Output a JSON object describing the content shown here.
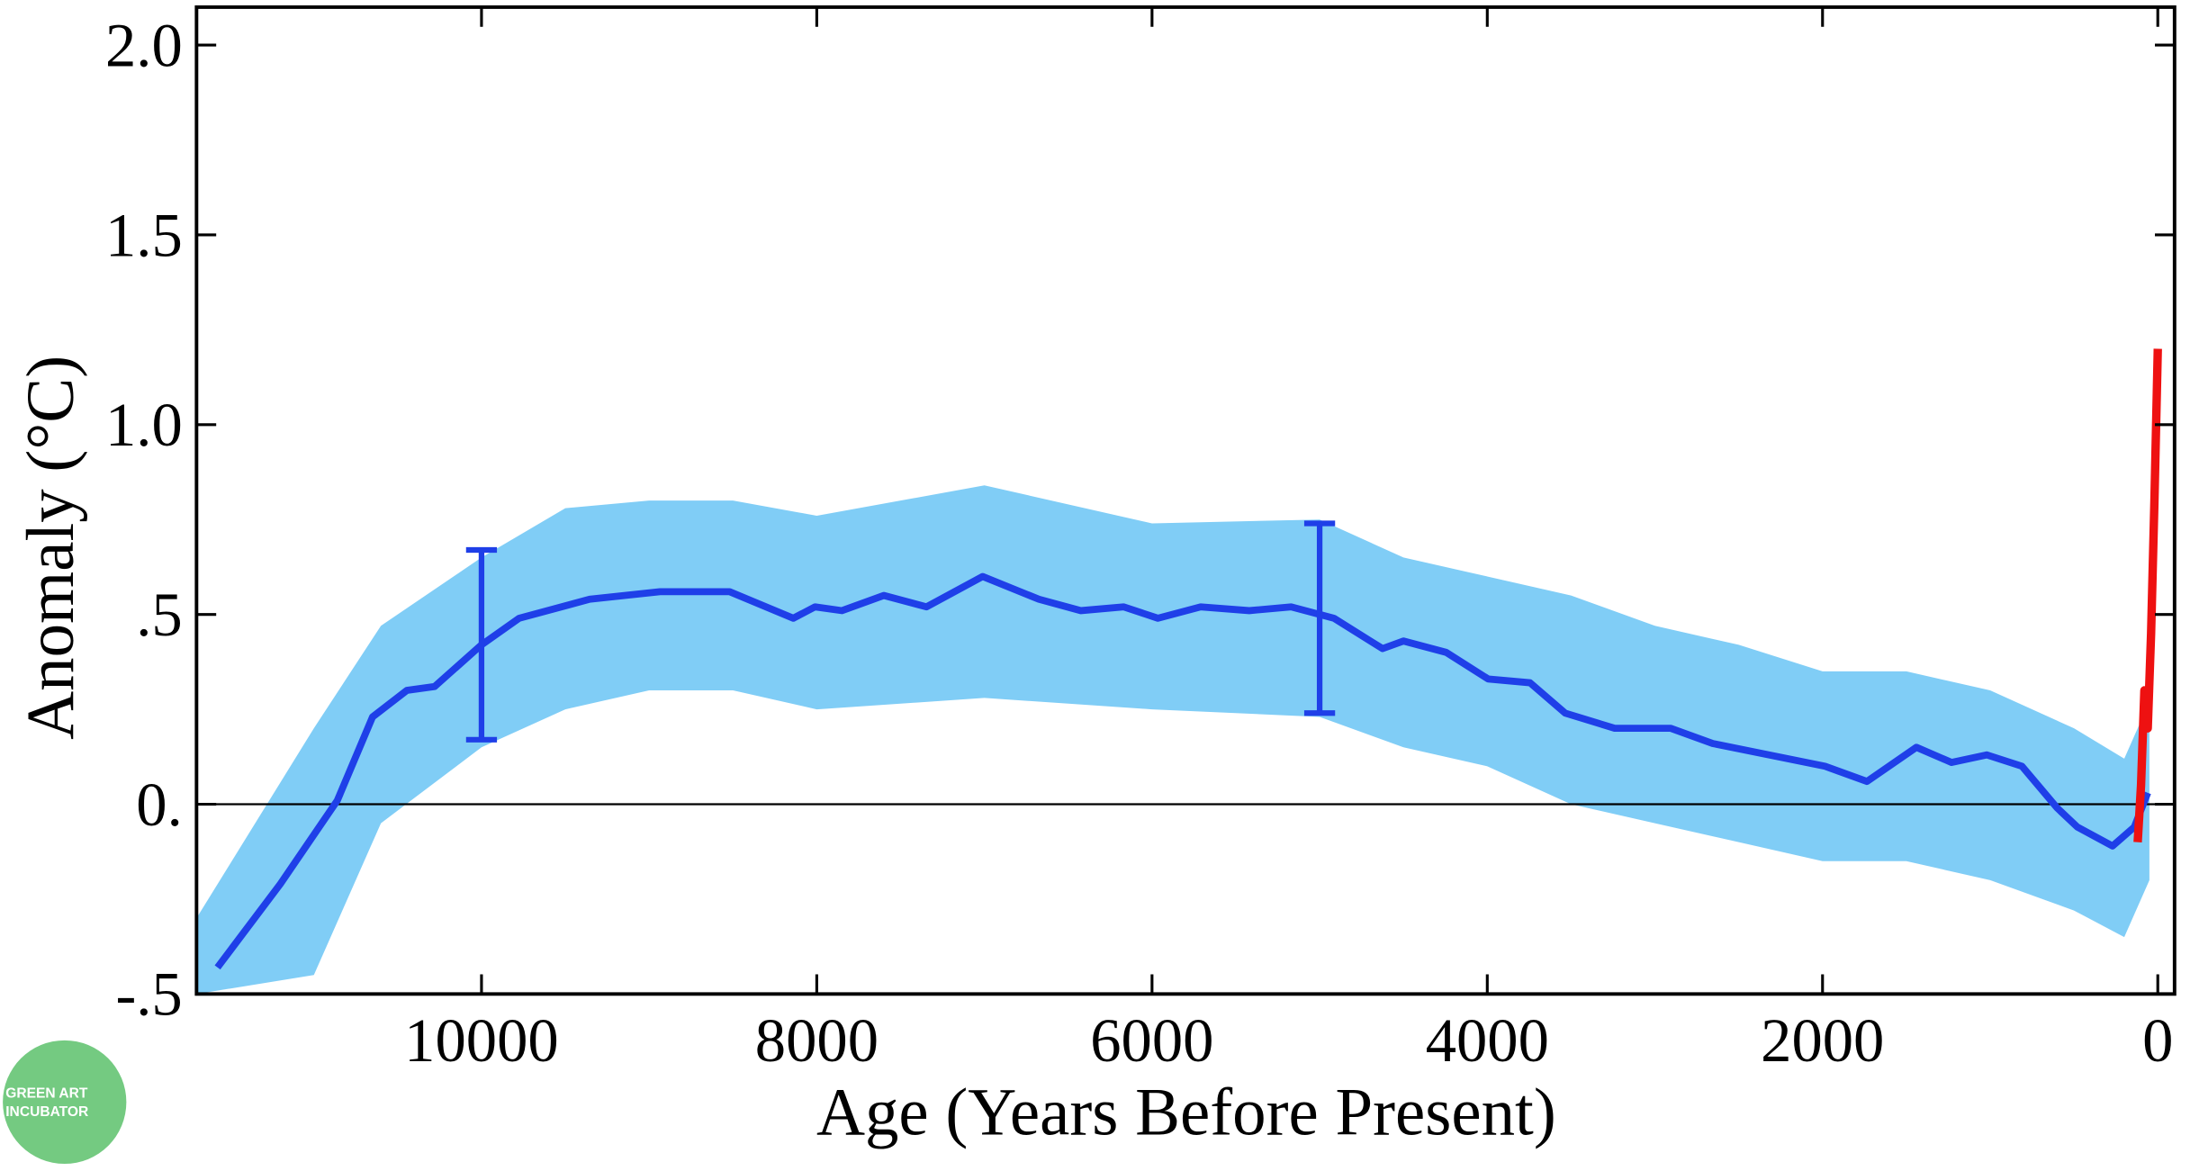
{
  "chart_data": {
    "type": "line",
    "xlabel": "Age (Years Before Present)",
    "ylabel": "Anomaly (°C)",
    "xlim": [
      11700,
      -100
    ],
    "ylim": [
      -0.5,
      2.1
    ],
    "xticks": [
      10000,
      8000,
      6000,
      4000,
      2000,
      0
    ],
    "yticks": [
      {
        "value": 2.0,
        "label": "2.0"
      },
      1.5,
      {
        "value": 1.0,
        "label": "1.0"
      },
      {
        "value": 0.5,
        "label": ".5"
      },
      {
        "value": 0,
        "label": "0."
      },
      {
        "value": -0.5,
        "label": "-.5"
      }
    ],
    "hline": 0,
    "band": {
      "color": "#80cdf6",
      "x": [
        11700,
        11000,
        10600,
        10000,
        9500,
        9000,
        8500,
        8000,
        7000,
        6000,
        5000,
        4500,
        4000,
        3500,
        3000,
        2500,
        2000,
        1500,
        1000,
        500,
        200,
        50
      ],
      "upper": [
        -0.3,
        0.2,
        0.47,
        0.65,
        0.78,
        0.8,
        0.8,
        0.76,
        0.84,
        0.74,
        0.75,
        0.65,
        0.6,
        0.55,
        0.47,
        0.42,
        0.35,
        0.35,
        0.3,
        0.2,
        0.12,
        0.27
      ],
      "lower": [
        -0.5,
        -0.45,
        -0.05,
        0.15,
        0.25,
        0.3,
        0.3,
        0.25,
        0.28,
        0.25,
        0.23,
        0.15,
        0.1,
        0.0,
        -0.05,
        -0.1,
        -0.15,
        -0.15,
        -0.2,
        -0.28,
        -0.35,
        -0.2
      ]
    },
    "series": [
      {
        "color": "#1f3fe8",
        "x": [
          11575,
          11200,
          10860,
          10650,
          10445,
          10280,
          10000,
          9775,
          9355,
          8935,
          8520,
          8140,
          8010,
          7850,
          7600,
          7345,
          7010,
          6675,
          6425,
          6170,
          5965,
          5710,
          5420,
          5170,
          4915,
          4625,
          4500,
          4245,
          3995,
          3745,
          3535,
          3240,
          2905,
          2655,
          2320,
          1985,
          1735,
          1440,
          1230,
          1020,
          810,
          600,
          480,
          270,
          140,
          60
        ],
        "values": [
          -0.43,
          -0.21,
          0.01,
          0.23,
          0.3,
          0.31,
          0.42,
          0.49,
          0.54,
          0.56,
          0.56,
          0.49,
          0.52,
          0.51,
          0.55,
          0.52,
          0.6,
          0.54,
          0.51,
          0.52,
          0.49,
          0.52,
          0.51,
          0.52,
          0.49,
          0.41,
          0.43,
          0.4,
          0.33,
          0.32,
          0.24,
          0.2,
          0.2,
          0.16,
          0.13,
          0.1,
          0.06,
          0.15,
          0.11,
          0.13,
          0.1,
          -0.01,
          -0.06,
          -0.11,
          -0.06,
          0.03
        ]
      },
      {
        "color": "#ee1111",
        "x": [
          120,
          100,
          80,
          60,
          40,
          20,
          10,
          0
        ],
        "values": [
          -0.1,
          0.05,
          0.3,
          0.2,
          0.45,
          0.8,
          1.0,
          1.2
        ]
      }
    ],
    "error_bars": {
      "color": "#1f3fe8",
      "x": [
        10000,
        5000
      ],
      "values": [
        0.42,
        0.49
      ],
      "errors": [
        0.25,
        0.25
      ]
    },
    "watermark": [
      "GREEN ART",
      "INCUBATOR"
    ]
  }
}
